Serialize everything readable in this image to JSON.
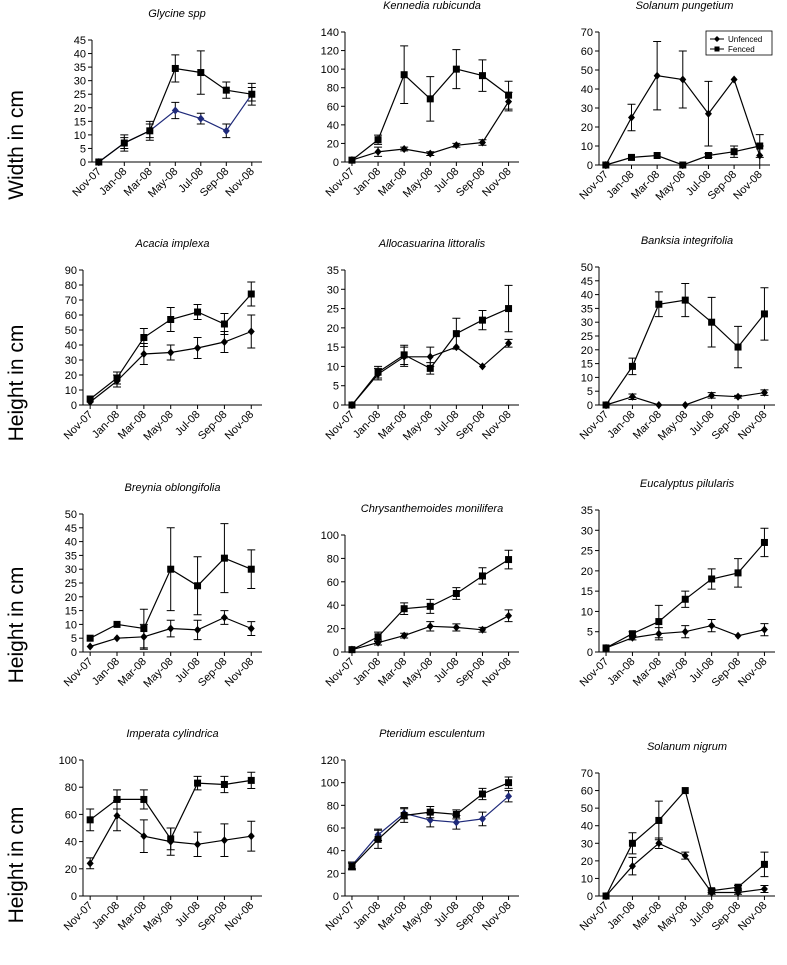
{
  "figure": {
    "row_labels": [
      "Width in cm",
      "Height in cm",
      "Height in cm",
      "Height in cm"
    ],
    "legend": {
      "unfenced": "Unfenced",
      "fenced": "Fenced",
      "position": "top-right of Solanum pungetium panel"
    },
    "colors": {
      "ink": "#000000",
      "unfenced_blue": "#1f2a7a"
    }
  },
  "chart_data": [
    {
      "type": "line",
      "title": "Glycine spp",
      "ylabel": "Width in cm",
      "x": [
        "Nov-07",
        "Jan-08",
        "Mar-08",
        "May-08",
        "Jul-08",
        "Sep-08",
        "Nov-08"
      ],
      "ylim": [
        0,
        45
      ],
      "yticks": [
        0,
        5,
        10,
        15,
        20,
        25,
        30,
        35,
        40,
        45
      ],
      "grid": false,
      "series": [
        {
          "name": "Unfenced",
          "marker": "diamond",
          "color": "#1f2a7a",
          "values": [
            0,
            7,
            11.5,
            19,
            16,
            11.5,
            25
          ],
          "errors": [
            0,
            2,
            2.5,
            3,
            2,
            2.5,
            2.5
          ]
        },
        {
          "name": "Fenced",
          "marker": "square",
          "color": "#000000",
          "values": [
            0,
            7,
            11.5,
            34.5,
            33,
            26.5,
            25
          ],
          "errors": [
            0,
            3,
            3.5,
            5,
            8,
            3,
            4
          ]
        }
      ]
    },
    {
      "type": "line",
      "title": "Kennedia rubicunda",
      "ylabel": "Width in cm",
      "x": [
        "Nov-07",
        "Jan-08",
        "Mar-08",
        "May-08",
        "Jul-08",
        "Sep-08",
        "Nov-08"
      ],
      "ylim": [
        0,
        140
      ],
      "yticks": [
        0,
        20,
        40,
        60,
        80,
        100,
        120,
        140
      ],
      "grid": false,
      "series": [
        {
          "name": "Unfenced",
          "marker": "diamond",
          "color": "#000000",
          "values": [
            2,
            11,
            14,
            9,
            18,
            21,
            65
          ],
          "errors": [
            0,
            5,
            2,
            2,
            2,
            3,
            10
          ]
        },
        {
          "name": "Fenced",
          "marker": "square",
          "color": "#000000",
          "values": [
            2,
            24,
            94,
            68,
            100,
            93,
            72
          ],
          "errors": [
            0,
            5,
            31,
            24,
            21,
            17,
            15
          ]
        }
      ]
    },
    {
      "type": "line",
      "title": "Solanum pungetium",
      "ylabel": "Width in cm",
      "x": [
        "Nov-07",
        "Jan-08",
        "Mar-08",
        "May-08",
        "Jul-08",
        "Sep-08",
        "Nov-08"
      ],
      "ylim": [
        0,
        70
      ],
      "yticks": [
        0,
        10,
        20,
        30,
        40,
        50,
        60,
        70
      ],
      "grid": false,
      "series": [
        {
          "name": "Unfenced",
          "marker": "diamond",
          "color": "#000000",
          "values": [
            0,
            25,
            47,
            45,
            27,
            45,
            5
          ],
          "errors": [
            0,
            7,
            18,
            15,
            17,
            0,
            5
          ]
        },
        {
          "name": "Fenced",
          "marker": "square",
          "color": "#000000",
          "values": [
            0,
            4,
            5,
            0,
            5,
            7,
            10
          ],
          "errors": [
            0,
            0,
            0,
            0,
            1,
            3,
            6
          ]
        }
      ]
    },
    {
      "type": "line",
      "title": "Acacia implexa",
      "ylabel": "Height in cm",
      "x": [
        "Nov-07",
        "Jan-08",
        "Mar-08",
        "May-08",
        "Jul-08",
        "Sep-08",
        "Nov-08"
      ],
      "ylim": [
        0,
        90
      ],
      "yticks": [
        0,
        10,
        20,
        30,
        40,
        50,
        60,
        70,
        80,
        90
      ],
      "grid": false,
      "series": [
        {
          "name": "Unfenced",
          "marker": "diamond",
          "color": "#000000",
          "values": [
            2,
            16,
            34,
            35,
            38,
            42,
            49
          ],
          "errors": [
            0,
            4,
            7,
            5,
            7,
            7,
            11
          ]
        },
        {
          "name": "Fenced",
          "marker": "square",
          "color": "#000000",
          "values": [
            4,
            18,
            45,
            57,
            62,
            54,
            74
          ],
          "errors": [
            0,
            4,
            6,
            8,
            5,
            7,
            8
          ]
        }
      ]
    },
    {
      "type": "line",
      "title": "Allocasuarina littoralis",
      "ylabel": "Height in cm",
      "x": [
        "Nov-07",
        "Jan-08",
        "Mar-08",
        "May-08",
        "Jul-08",
        "Sep-08",
        "Nov-08"
      ],
      "ylim": [
        0,
        35
      ],
      "yticks": [
        0,
        5,
        10,
        15,
        20,
        25,
        30,
        35
      ],
      "grid": false,
      "series": [
        {
          "name": "Unfenced",
          "marker": "diamond",
          "color": "#000000",
          "values": [
            0,
            8,
            12.5,
            12.5,
            15,
            10,
            16
          ],
          "errors": [
            0,
            1.5,
            2.5,
            2.5,
            0,
            0,
            1
          ]
        },
        {
          "name": "Fenced",
          "marker": "square",
          "color": "#000000",
          "values": [
            0,
            8.5,
            13,
            9.5,
            18.5,
            22,
            25
          ],
          "errors": [
            0,
            1.5,
            2.5,
            1.5,
            4,
            2.5,
            6
          ]
        }
      ]
    },
    {
      "type": "line",
      "title": "Banksia integrifolia",
      "ylabel": "Height in cm",
      "x": [
        "Nov-07",
        "Jan-08",
        "Mar-08",
        "May-08",
        "Jul-08",
        "Sep-08",
        "Nov-08"
      ],
      "ylim": [
        0,
        50
      ],
      "yticks": [
        0,
        5,
        10,
        15,
        20,
        25,
        30,
        35,
        40,
        45,
        50
      ],
      "grid": false,
      "series": [
        {
          "name": "Unfenced",
          "marker": "diamond",
          "color": "#000000",
          "values": [
            0,
            3,
            0,
            0,
            3.5,
            3,
            4.5
          ],
          "errors": [
            0,
            1,
            0,
            0,
            1,
            0.5,
            1
          ]
        },
        {
          "name": "Fenced",
          "marker": "square",
          "color": "#000000",
          "values": [
            0,
            14,
            36.5,
            38,
            30,
            21,
            33
          ],
          "errors": [
            0,
            3,
            4.5,
            6,
            9,
            7.5,
            9.5
          ]
        }
      ]
    },
    {
      "type": "line",
      "title": "Breynia oblongifolia",
      "ylabel": "Height in cm",
      "x": [
        "Nov-07",
        "Jan-08",
        "Mar-08",
        "May-08",
        "Jul-08",
        "Sep-08",
        "Nov-08"
      ],
      "ylim": [
        0,
        50
      ],
      "yticks": [
        0,
        5,
        10,
        15,
        20,
        25,
        30,
        35,
        40,
        45,
        50
      ],
      "grid": false,
      "series": [
        {
          "name": "Unfenced",
          "marker": "diamond",
          "color": "#000000",
          "values": [
            2,
            5,
            5.5,
            8.5,
            8,
            12.5,
            8.5
          ],
          "errors": [
            0,
            0,
            4.5,
            3,
            3.5,
            2.5,
            2.5
          ]
        },
        {
          "name": "Fenced",
          "marker": "square",
          "color": "#000000",
          "values": [
            5,
            10,
            8.5,
            30,
            24,
            34,
            30
          ],
          "errors": [
            0,
            0,
            7,
            15,
            10.5,
            12.5,
            7
          ]
        }
      ]
    },
    {
      "type": "line",
      "title": "Chrysanthemoides monilifera",
      "ylabel": "Height in cm",
      "x": [
        "Nov-07",
        "Jan-08",
        "Mar-08",
        "May-08",
        "Jul-08",
        "Sep-08",
        "Nov-08"
      ],
      "ylim": [
        0,
        100
      ],
      "yticks": [
        0,
        20,
        40,
        60,
        80,
        100
      ],
      "grid": false,
      "series": [
        {
          "name": "Unfenced",
          "marker": "diamond",
          "color": "#000000",
          "values": [
            2,
            8,
            14,
            22,
            21,
            19,
            31
          ],
          "errors": [
            0,
            2,
            2,
            4,
            3,
            2,
            5
          ]
        },
        {
          "name": "Fenced",
          "marker": "square",
          "color": "#000000",
          "values": [
            2,
            13,
            37,
            39,
            50,
            65,
            79
          ],
          "errors": [
            0,
            4,
            5,
            6,
            5,
            7,
            8
          ]
        }
      ]
    },
    {
      "type": "line",
      "title": "Eucalyptus pilularis",
      "ylabel": "Height in cm",
      "x": [
        "Nov-07",
        "Jan-08",
        "Mar-08",
        "May-08",
        "Jul-08",
        "Sep-08",
        "Nov-08"
      ],
      "ylim": [
        0,
        35
      ],
      "yticks": [
        0,
        5,
        10,
        15,
        20,
        25,
        30,
        35
      ],
      "grid": false,
      "series": [
        {
          "name": "Unfenced",
          "marker": "diamond",
          "color": "#000000",
          "values": [
            1,
            3.5,
            4.5,
            5,
            6.5,
            4,
            5.5
          ],
          "errors": [
            0,
            0.5,
            1.5,
            1.5,
            1.5,
            0,
            1.5
          ]
        },
        {
          "name": "Fenced",
          "marker": "square",
          "color": "#000000",
          "values": [
            1,
            4.5,
            7.5,
            13,
            18,
            19.5,
            27
          ],
          "errors": [
            0,
            0.5,
            4,
            2,
            2.5,
            3.5,
            3.5
          ]
        }
      ]
    },
    {
      "type": "line",
      "title": "Imperata cylindrica",
      "ylabel": "Height in cm",
      "x": [
        "Nov-07",
        "Jan-08",
        "Mar-08",
        "May-08",
        "Jul-08",
        "Sep-08",
        "Nov-08"
      ],
      "ylim": [
        0,
        100
      ],
      "yticks": [
        0,
        20,
        40,
        60,
        80,
        100
      ],
      "grid": false,
      "series": [
        {
          "name": "Unfenced",
          "marker": "diamond",
          "color": "#000000",
          "values": [
            24,
            59,
            44,
            40,
            38,
            41,
            44
          ],
          "errors": [
            4,
            11,
            12,
            10,
            9,
            12,
            11
          ]
        },
        {
          "name": "Fenced",
          "marker": "square",
          "color": "#000000",
          "values": [
            56,
            71,
            71,
            42,
            83,
            82,
            85
          ],
          "errors": [
            8,
            7,
            7,
            8,
            5,
            6,
            6
          ]
        }
      ]
    },
    {
      "type": "line",
      "title": "Pteridium esculentum",
      "ylabel": "Height in cm",
      "x": [
        "Nov-07",
        "Jan-08",
        "Mar-08",
        "May-08",
        "Jul-08",
        "Sep-08",
        "Nov-08"
      ],
      "ylim": [
        0,
        120
      ],
      "yticks": [
        0,
        20,
        40,
        60,
        80,
        100,
        120
      ],
      "grid": false,
      "series": [
        {
          "name": "Unfenced",
          "marker": "diamond",
          "color": "#1f2a7a",
          "values": [
            27,
            54,
            73,
            67,
            65,
            68,
            88
          ],
          "errors": [
            3,
            5,
            5,
            6,
            6,
            6,
            5
          ]
        },
        {
          "name": "Fenced",
          "marker": "square",
          "color": "#000000",
          "values": [
            26,
            50,
            71,
            74,
            72,
            90,
            100
          ],
          "errors": [
            3,
            8,
            6,
            5,
            4,
            5,
            5
          ]
        }
      ]
    },
    {
      "type": "line",
      "title": "Solanum nigrum",
      "ylabel": "Height in cm",
      "x": [
        "Nov-07",
        "Jan-08",
        "Mar-08",
        "May-08",
        "Jul-08",
        "Sep-08",
        "Nov-08"
      ],
      "ylim": [
        0,
        70
      ],
      "yticks": [
        0,
        10,
        20,
        30,
        40,
        50,
        60,
        70
      ],
      "grid": false,
      "series": [
        {
          "name": "Unfenced",
          "marker": "diamond",
          "color": "#000000",
          "values": [
            0,
            17,
            30,
            23,
            2,
            2,
            4
          ],
          "errors": [
            0,
            5,
            3,
            2,
            1,
            1,
            2
          ]
        },
        {
          "name": "Fenced",
          "marker": "square",
          "color": "#000000",
          "values": [
            0,
            30,
            43,
            60,
            3,
            5,
            18
          ],
          "errors": [
            0,
            6,
            11,
            0,
            1,
            1,
            7
          ]
        }
      ]
    }
  ]
}
